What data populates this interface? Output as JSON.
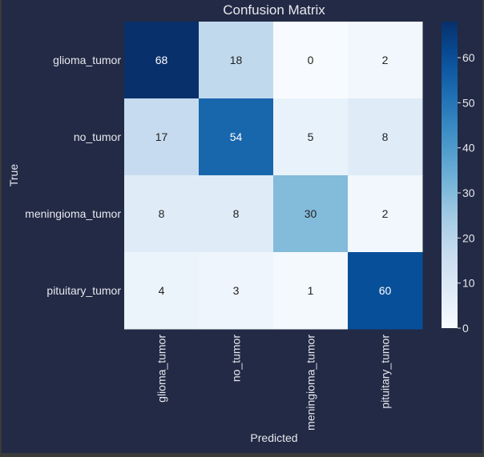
{
  "chart_data": {
    "type": "heatmap",
    "title": "Confusion Matrix",
    "xlabel": "Predicted",
    "ylabel": "True",
    "x_categories": [
      "glioma_tumor",
      "no_tumor",
      "meningioma_tumor",
      "pituitary_tumor"
    ],
    "y_categories": [
      "glioma_tumor",
      "no_tumor",
      "meningioma_tumor",
      "pituitary_tumor"
    ],
    "matrix": [
      [
        68,
        18,
        0,
        2
      ],
      [
        17,
        54,
        5,
        8
      ],
      [
        8,
        8,
        30,
        2
      ],
      [
        4,
        3,
        1,
        60
      ]
    ],
    "colormap": "Blues",
    "vmin": 0,
    "vmax": 68,
    "colorbar_ticks": [
      0,
      10,
      20,
      30,
      40,
      50,
      60
    ],
    "annotations": true
  },
  "colors": {
    "figure_background": "#222a45",
    "text": "#e8e8ee",
    "cell_text_light": "#ffffff",
    "cell_text_dark": "#222222"
  }
}
